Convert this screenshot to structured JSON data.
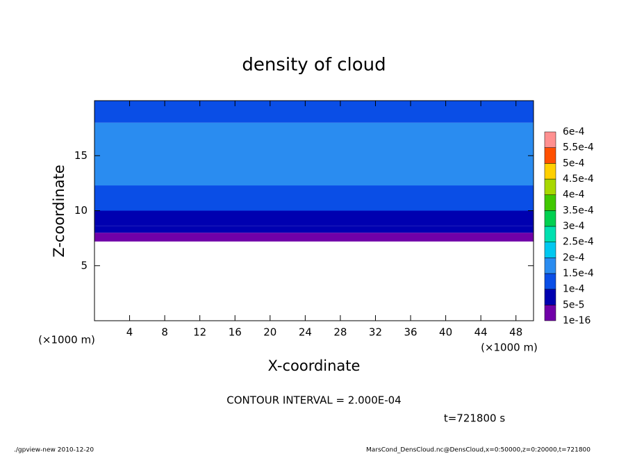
{
  "chart_data": {
    "type": "contour",
    "title": "density of cloud",
    "x_label": "X-coordinate",
    "y_label": "Z-coordinate",
    "x_unit": "(×1000 m)",
    "y_unit": "(×1000 m)",
    "xlim": [
      0,
      50
    ],
    "ylim": [
      0,
      20
    ],
    "xticks": [
      4,
      8,
      12,
      16,
      20,
      24,
      28,
      32,
      36,
      40,
      44,
      48
    ],
    "yticks": [
      5,
      10,
      15
    ],
    "z": [
      7.2,
      8,
      8.6,
      10,
      12.3,
      18,
      20
    ],
    "values": [
      3e-05,
      7e-05,
      9e-05,
      0.00012,
      0.00016,
      0.00013
    ],
    "levels": [
      {
        "value": 1e-16,
        "label": "1e-16"
      },
      {
        "value": 5e-05,
        "label": "5e-5"
      },
      {
        "value": 0.0001,
        "label": "1e-4"
      },
      {
        "value": 0.00015,
        "label": "1.5e-4"
      },
      {
        "value": 0.0002,
        "label": "2e-4"
      },
      {
        "value": 0.00025,
        "label": "2.5e-4"
      },
      {
        "value": 0.0003,
        "label": "3e-4"
      },
      {
        "value": 0.00035,
        "label": "3.5e-4"
      },
      {
        "value": 0.0004,
        "label": "4e-4"
      },
      {
        "value": 0.00045,
        "label": "4.5e-4"
      },
      {
        "value": 0.0005,
        "label": "5e-4"
      },
      {
        "value": 0.00055,
        "label": "5.5e-4"
      },
      {
        "value": 0.0006,
        "label": "6e-4"
      }
    ],
    "colors": [
      "#7000a8",
      "#0000b0",
      "#0a4ee6",
      "#2a8cf0",
      "#00c8f0",
      "#00e0b0",
      "#00d050",
      "#40c800",
      "#a8d800",
      "#ffd000",
      "#ff5000",
      "#ff9090"
    ],
    "note": "CONTOUR INTERVAL = 2.000E-04",
    "time": "t=721800 s",
    "footer_left": "./gpview-new  2010-12-20",
    "footer_right": "MarsCond_DensCloud.nc@DensCloud,x=0:50000,z=0:20000,t=721800"
  }
}
